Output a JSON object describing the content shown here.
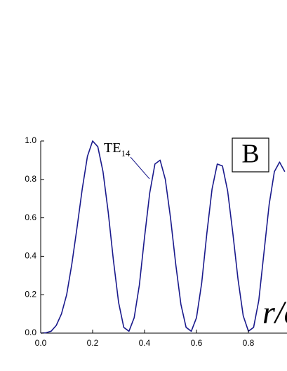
{
  "chart_data": {
    "type": "line",
    "x": [
      0,
      0.02,
      0.04,
      0.06,
      0.08,
      0.1,
      0.12,
      0.14,
      0.16,
      0.18,
      0.2,
      0.22,
      0.24,
      0.26,
      0.28,
      0.3,
      0.32,
      0.34,
      0.36,
      0.38,
      0.4,
      0.42,
      0.44,
      0.46,
      0.48,
      0.5,
      0.52,
      0.54,
      0.56,
      0.58,
      0.6,
      0.62,
      0.64,
      0.66,
      0.68,
      0.7,
      0.72,
      0.74,
      0.76,
      0.78,
      0.8,
      0.82,
      0.84,
      0.86,
      0.88,
      0.9,
      0.92,
      0.94
    ],
    "series": [
      {
        "color": "#1a1a8c",
        "values": [
          0,
          0.002,
          0.01,
          0.04,
          0.1,
          0.2,
          0.36,
          0.55,
          0.75,
          0.92,
          1.0,
          0.97,
          0.84,
          0.63,
          0.38,
          0.16,
          0.03,
          0.01,
          0.08,
          0.25,
          0.5,
          0.73,
          0.88,
          0.9,
          0.8,
          0.6,
          0.36,
          0.15,
          0.03,
          0.01,
          0.08,
          0.26,
          0.52,
          0.75,
          0.88,
          0.87,
          0.74,
          0.52,
          0.28,
          0.09,
          0.01,
          0.03,
          0.17,
          0.42,
          0.67,
          0.84,
          0.89,
          0.84
        ]
      }
    ],
    "xlim": [
      0,
      0.948
    ],
    "ylim": [
      0,
      1.0
    ],
    "xticks": [
      {
        "value": 0,
        "label": "0.0"
      },
      0.2,
      0.4,
      0.6,
      0.8
    ],
    "yticks": [
      {
        "value": 0,
        "label": "0.0"
      },
      0.2,
      0.4,
      0.6,
      0.8,
      {
        "value": 1.0,
        "label": "1.0"
      }
    ],
    "xlabel": "r/a",
    "annotation": {
      "text": "TE",
      "sub": "14"
    },
    "panel_label": "B"
  }
}
